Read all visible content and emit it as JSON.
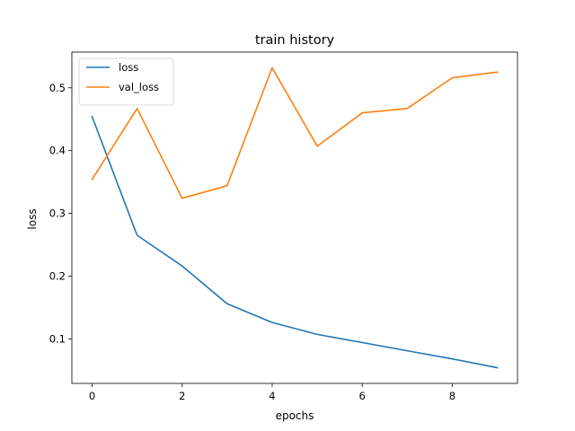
{
  "chart_data": {
    "type": "line",
    "title": "train history",
    "xlabel": "epochs",
    "ylabel": "loss",
    "xlim": [
      -0.45,
      9.45
    ],
    "ylim": [
      0.0289,
      0.5569
    ],
    "xticks": [
      0,
      2,
      4,
      6,
      8
    ],
    "yticks": [
      0.1,
      0.2,
      0.3,
      0.4,
      0.5
    ],
    "xtick_labels": [
      "0",
      "2",
      "4",
      "6",
      "8"
    ],
    "ytick_labels": [
      "0.1",
      "0.2",
      "0.3",
      "0.4",
      "0.5"
    ],
    "grid": false,
    "legend_position": "upper-left",
    "x": [
      0,
      1,
      2,
      3,
      4,
      5,
      6,
      7,
      8,
      9
    ],
    "series": [
      {
        "name": "loss",
        "color": "#1f77b4",
        "values": [
          0.454,
          0.265,
          0.216,
          0.156,
          0.126,
          0.107,
          0.094,
          0.081,
          0.068,
          0.054
        ]
      },
      {
        "name": "val_loss",
        "color": "#ff7f0e",
        "values": [
          0.354,
          0.467,
          0.324,
          0.344,
          0.532,
          0.407,
          0.46,
          0.467,
          0.516,
          0.525
        ]
      }
    ]
  }
}
